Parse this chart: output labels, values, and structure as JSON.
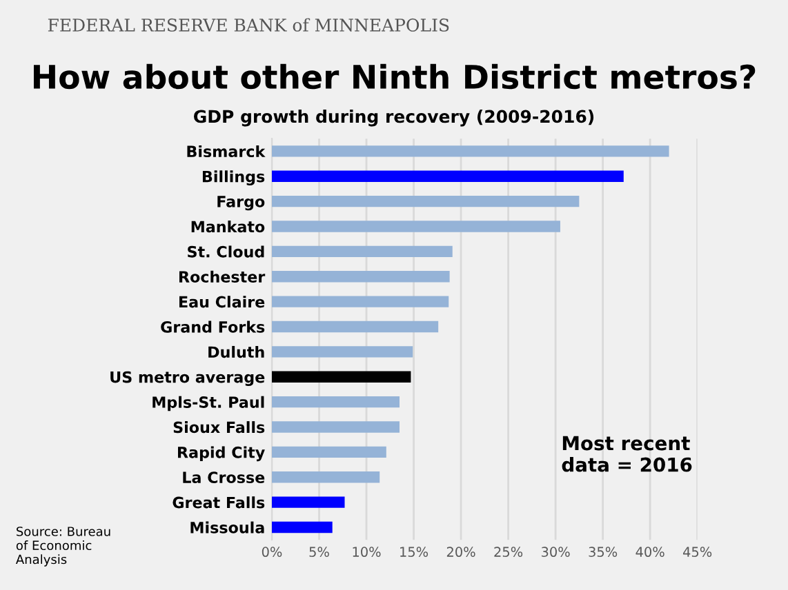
{
  "chart_data": {
    "type": "bar",
    "orientation": "horizontal",
    "title": "How about other Ninth District metros?",
    "subtitle": "GDP growth during recovery (2009-2016)",
    "categories": [
      "Bismarck",
      "Billings",
      "Fargo",
      "Mankato",
      "St. Cloud",
      "Rochester",
      "Eau Claire",
      "Grand Forks",
      "Duluth",
      "US metro average",
      "Mpls-St. Paul",
      "Sioux Falls",
      "Rapid City",
      "La Crosse",
      "Great Falls",
      "Missoula"
    ],
    "values": [
      42.0,
      37.2,
      32.5,
      30.5,
      19.1,
      18.8,
      18.7,
      17.6,
      14.9,
      14.7,
      13.5,
      13.5,
      12.1,
      11.4,
      7.7,
      6.4
    ],
    "colors": [
      "#95b3d7",
      "#0000ff",
      "#95b3d7",
      "#95b3d7",
      "#95b3d7",
      "#95b3d7",
      "#95b3d7",
      "#95b3d7",
      "#95b3d7",
      "#000000",
      "#95b3d7",
      "#95b3d7",
      "#95b3d7",
      "#95b3d7",
      "#0000ff",
      "#0000ff"
    ],
    "xlim": [
      0,
      45
    ],
    "xticks": [
      {
        "value": 0,
        "label": "0%"
      },
      {
        "value": 5,
        "label": "5%"
      },
      {
        "value": 10,
        "label": "10%"
      },
      {
        "value": 15,
        "label": "15%"
      },
      {
        "value": 20,
        "label": "20%"
      },
      {
        "value": 25,
        "label": "25%"
      },
      {
        "value": 30,
        "label": "30%"
      },
      {
        "value": 35,
        "label": "35%"
      },
      {
        "value": 40,
        "label": "40%"
      },
      {
        "value": 45,
        "label": "45%"
      }
    ],
    "grid": "x",
    "annotations": [
      "FEDERAL RESERVE BANK of MINNEAPOLIS",
      "Most recent\ndata = 2016",
      "Source: Bureau\nof Economic\nAnalysis"
    ]
  }
}
